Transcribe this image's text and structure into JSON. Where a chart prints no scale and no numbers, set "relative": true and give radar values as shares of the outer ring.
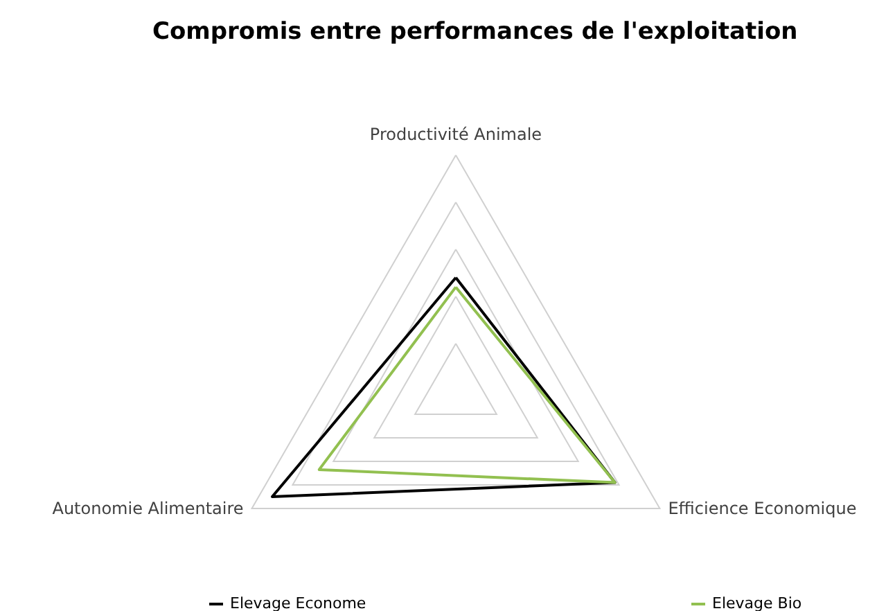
{
  "chart_data": {
    "type": "radar",
    "title": "Compromis entre performances de l'exploitation",
    "categories": [
      "Productivité Animale",
      "Efficience Economique",
      "Autonomie Alimentaire"
    ],
    "relative": true,
    "grid": true,
    "legend": "bottom",
    "series": [
      {
        "name": "Elevage Econome",
        "color": "#000000",
        "values": [
          0.48,
          0.78,
          0.9
        ]
      },
      {
        "name": "Elevage Bio",
        "color": "#92c050",
        "values": [
          0.44,
          0.78,
          0.67
        ]
      }
    ]
  }
}
